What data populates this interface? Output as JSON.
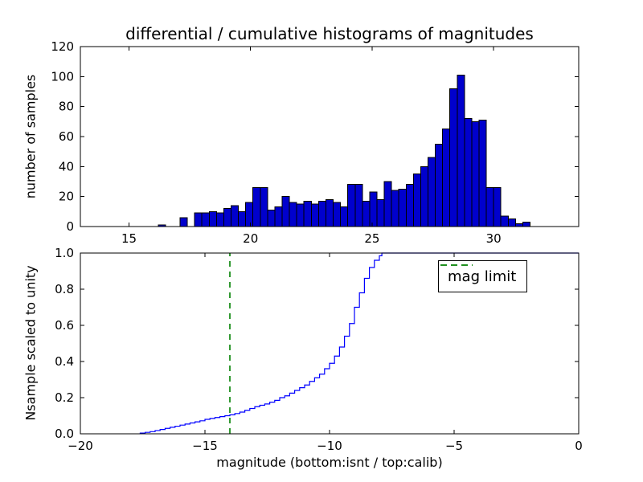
{
  "figure": {
    "title": "differential / cumulative histograms of magnitudes",
    "colors": {
      "background": "#ffffff",
      "bar_fill": "#0000cd",
      "bar_edge": "#000000",
      "cumulative_line": "#0000ff",
      "mag_limit_line": "#008000",
      "frame": "#000000"
    }
  },
  "chart_data": [
    {
      "type": "bar",
      "panel": "top",
      "ylabel": "number of samples",
      "xlim": [
        13,
        33.5
      ],
      "ylim": [
        0,
        120
      ],
      "grid": false,
      "xtick_values": [
        15,
        20,
        25,
        30
      ],
      "xtick_labels": [
        "15",
        "20",
        "25",
        "30"
      ],
      "ytick_values": [
        0,
        20,
        40,
        60,
        80,
        100,
        120
      ],
      "ytick_labels": [
        "0",
        "20",
        "40",
        "60",
        "80",
        "100",
        "120"
      ],
      "bin_start": 16.2,
      "bin_width": 0.3,
      "counts": [
        1,
        0,
        0,
        6,
        0,
        9,
        9,
        10,
        9,
        12,
        14,
        10,
        16,
        26,
        26,
        11,
        13,
        20,
        16,
        15,
        17,
        15,
        17,
        18,
        16,
        13,
        28,
        28,
        17,
        23,
        18,
        30,
        24,
        25,
        28,
        35,
        40,
        46,
        55,
        65,
        92,
        101,
        72,
        70,
        71,
        26,
        26,
        7,
        5,
        2,
        3
      ]
    },
    {
      "type": "line",
      "style": "step",
      "panel": "bottom",
      "xlabel": "magnitude (bottom:isnt / top:calib)",
      "ylabel": "Nsample scaled to unity",
      "xlim": [
        -20,
        0
      ],
      "ylim": [
        0,
        1
      ],
      "grid": false,
      "legend_position": "upper right",
      "xtick_values": [
        -20,
        -15,
        -10,
        -5,
        0
      ],
      "xtick_labels": [
        "−20",
        "−15",
        "−10",
        "−5",
        "0"
      ],
      "ytick_values": [
        0,
        0.2,
        0.4,
        0.6,
        0.8,
        1.0
      ],
      "ytick_labels": [
        "0.0",
        "0.2",
        "0.4",
        "0.6",
        "0.8",
        "1.0"
      ],
      "steps": [
        [
          -17.6,
          0.004
        ],
        [
          -17.4,
          0.008
        ],
        [
          -17.2,
          0.012
        ],
        [
          -17,
          0.018
        ],
        [
          -16.8,
          0.024
        ],
        [
          -16.6,
          0.03
        ],
        [
          -16.4,
          0.036
        ],
        [
          -16.2,
          0.042
        ],
        [
          -16,
          0.048
        ],
        [
          -15.8,
          0.054
        ],
        [
          -15.6,
          0.06
        ],
        [
          -15.4,
          0.066
        ],
        [
          -15.2,
          0.072
        ],
        [
          -15,
          0.08
        ],
        [
          -14.8,
          0.085
        ],
        [
          -14.6,
          0.09
        ],
        [
          -14.4,
          0.095
        ],
        [
          -14.2,
          0.1
        ],
        [
          -14,
          0.105
        ],
        [
          -13.8,
          0.112
        ],
        [
          -13.6,
          0.12
        ],
        [
          -13.4,
          0.13
        ],
        [
          -13.2,
          0.14
        ],
        [
          -13,
          0.15
        ],
        [
          -12.8,
          0.158
        ],
        [
          -12.6,
          0.165
        ],
        [
          -12.4,
          0.175
        ],
        [
          -12.2,
          0.185
        ],
        [
          -12,
          0.2
        ],
        [
          -11.8,
          0.21
        ],
        [
          -11.6,
          0.225
        ],
        [
          -11.4,
          0.24
        ],
        [
          -11.2,
          0.255
        ],
        [
          -11,
          0.27
        ],
        [
          -10.8,
          0.29
        ],
        [
          -10.6,
          0.31
        ],
        [
          -10.4,
          0.33
        ],
        [
          -10.2,
          0.36
        ],
        [
          -10,
          0.39
        ],
        [
          -9.8,
          0.43
        ],
        [
          -9.6,
          0.48
        ],
        [
          -9.4,
          0.54
        ],
        [
          -9.2,
          0.61
        ],
        [
          -9,
          0.7
        ],
        [
          -8.8,
          0.78
        ],
        [
          -8.6,
          0.86
        ],
        [
          -8.4,
          0.92
        ],
        [
          -8.2,
          0.96
        ],
        [
          -8,
          0.985
        ],
        [
          -7.9,
          1
        ]
      ],
      "mag_limit": -14,
      "legend": {
        "label": "mag limit"
      }
    }
  ]
}
